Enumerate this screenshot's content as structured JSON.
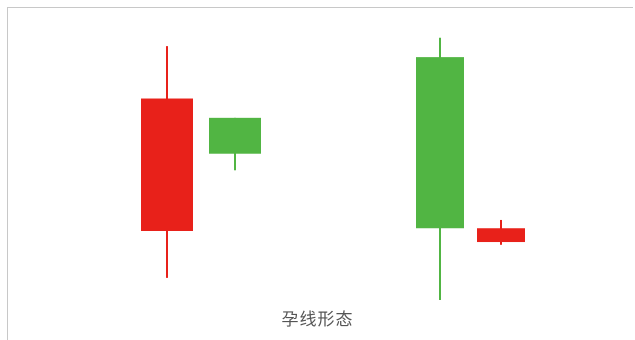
{
  "caption": "孕线形态",
  "colors": {
    "up": "#e8211a",
    "down": "#51b543",
    "frame": "#c8c8c8",
    "caption": "#555555"
  },
  "candles": [
    {
      "name": "big-red-candle",
      "color": "up",
      "high": 92,
      "low": 8,
      "body_top": 73,
      "body_bottom": 25
    },
    {
      "name": "small-green-candle",
      "color": "down",
      "high": 66,
      "body_top": 66,
      "body_bottom": 53,
      "low": 47
    },
    {
      "name": "big-green-candle",
      "color": "down",
      "high": 95,
      "body_top": 88,
      "body_bottom": 26,
      "low": 0
    },
    {
      "name": "small-red-candle",
      "color": "up",
      "high": 29,
      "body_top": 26,
      "body_bottom": 21,
      "low": 20
    }
  ]
}
